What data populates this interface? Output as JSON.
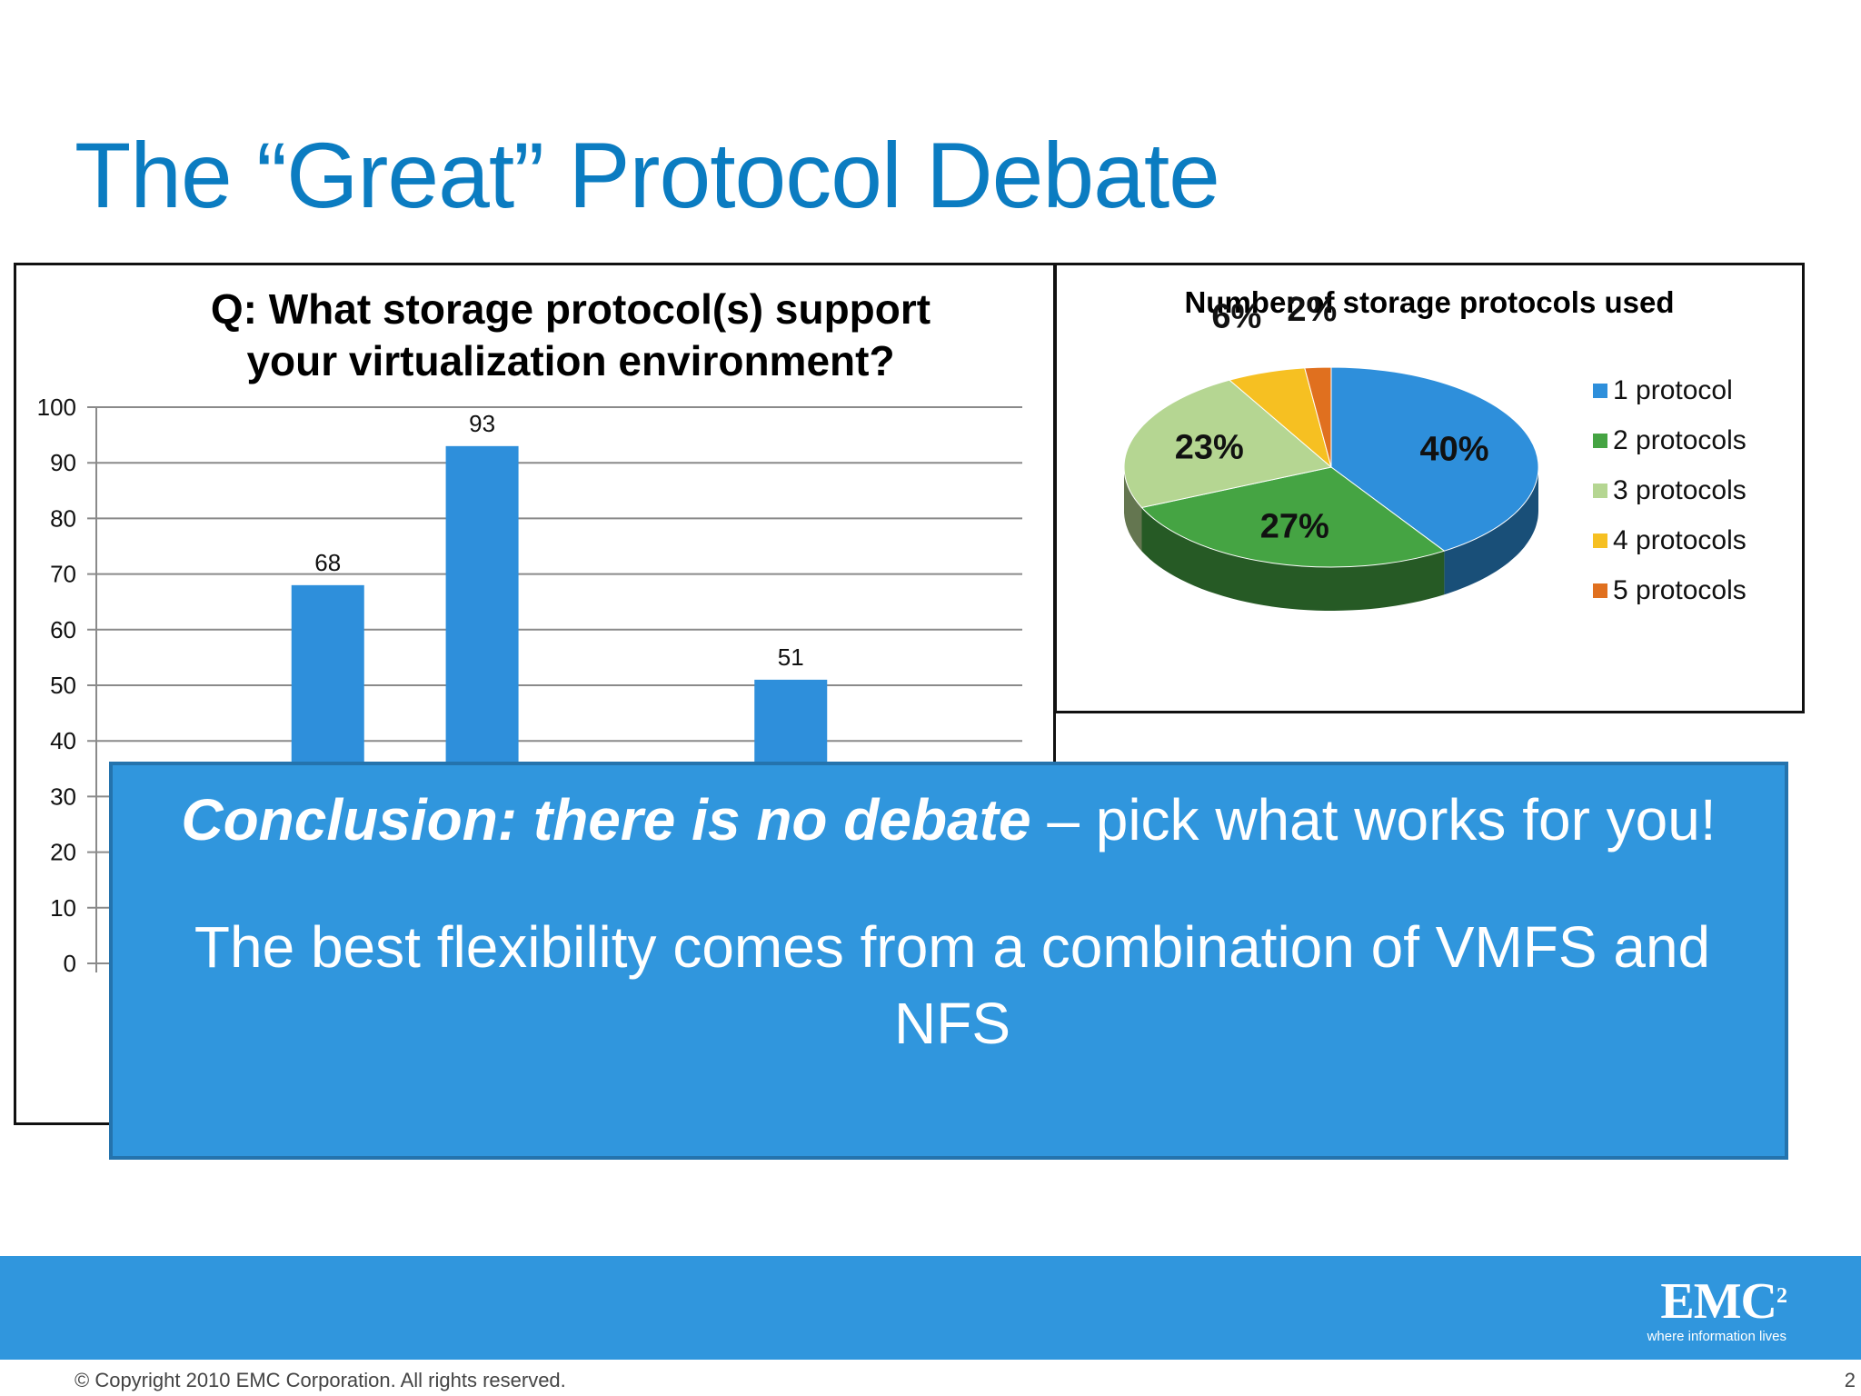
{
  "slide": {
    "title": "The “Great” Protocol Debate",
    "page_number": "2",
    "copyright": "© Copyright 2010 EMC Corporation. All rights reserved."
  },
  "brand": {
    "accent": "#3096dd",
    "title_color": "#0b7cc1",
    "logo_text": "EMC",
    "logo_superscript": "2",
    "logo_tagline": "where information lives"
  },
  "conclusion": {
    "lead_emphasis": "Conclusion: there is no debate",
    "lead_rest": " – pick what works for you!",
    "body": "The best flexibility comes from a combination of VMFS and NFS"
  },
  "chart_data": [
    {
      "type": "bar",
      "title": "Q: What storage protocol(s) support your virtualization environment?",
      "title_lines": [
        "Q: What storage protocol(s) support",
        "your virtualization environment?"
      ],
      "ylim": [
        0,
        100
      ],
      "yticks": [
        "0",
        "10",
        "20",
        "30",
        "40",
        "50",
        "60",
        "70",
        "80",
        "90",
        "100"
      ],
      "grid": true,
      "color": "#2e8fdb",
      "categories": [
        "",
        "",
        "",
        "",
        "",
        ""
      ],
      "values": [
        null,
        68,
        93,
        null,
        51,
        null
      ],
      "data_labels": [
        "",
        "68",
        "93",
        "",
        "51",
        ""
      ],
      "note": ""
    },
    {
      "type": "pie",
      "title": "Number of storage protocols used",
      "legend_position": "right",
      "slices": [
        {
          "label": "1 protocol",
          "value": 40,
          "display": "40%",
          "color": "#2e8fdb"
        },
        {
          "label": "2 protocols",
          "value": 27,
          "display": "27%",
          "color": "#45a443"
        },
        {
          "label": "3 protocols",
          "value": 23,
          "display": "23%",
          "color": "#b5d692"
        },
        {
          "label": "4 protocols",
          "value": 6,
          "display": "6%",
          "color": "#f6c022"
        },
        {
          "label": "5 protocols",
          "value": 2,
          "display": "2%",
          "color": "#e0701f"
        }
      ]
    }
  ]
}
